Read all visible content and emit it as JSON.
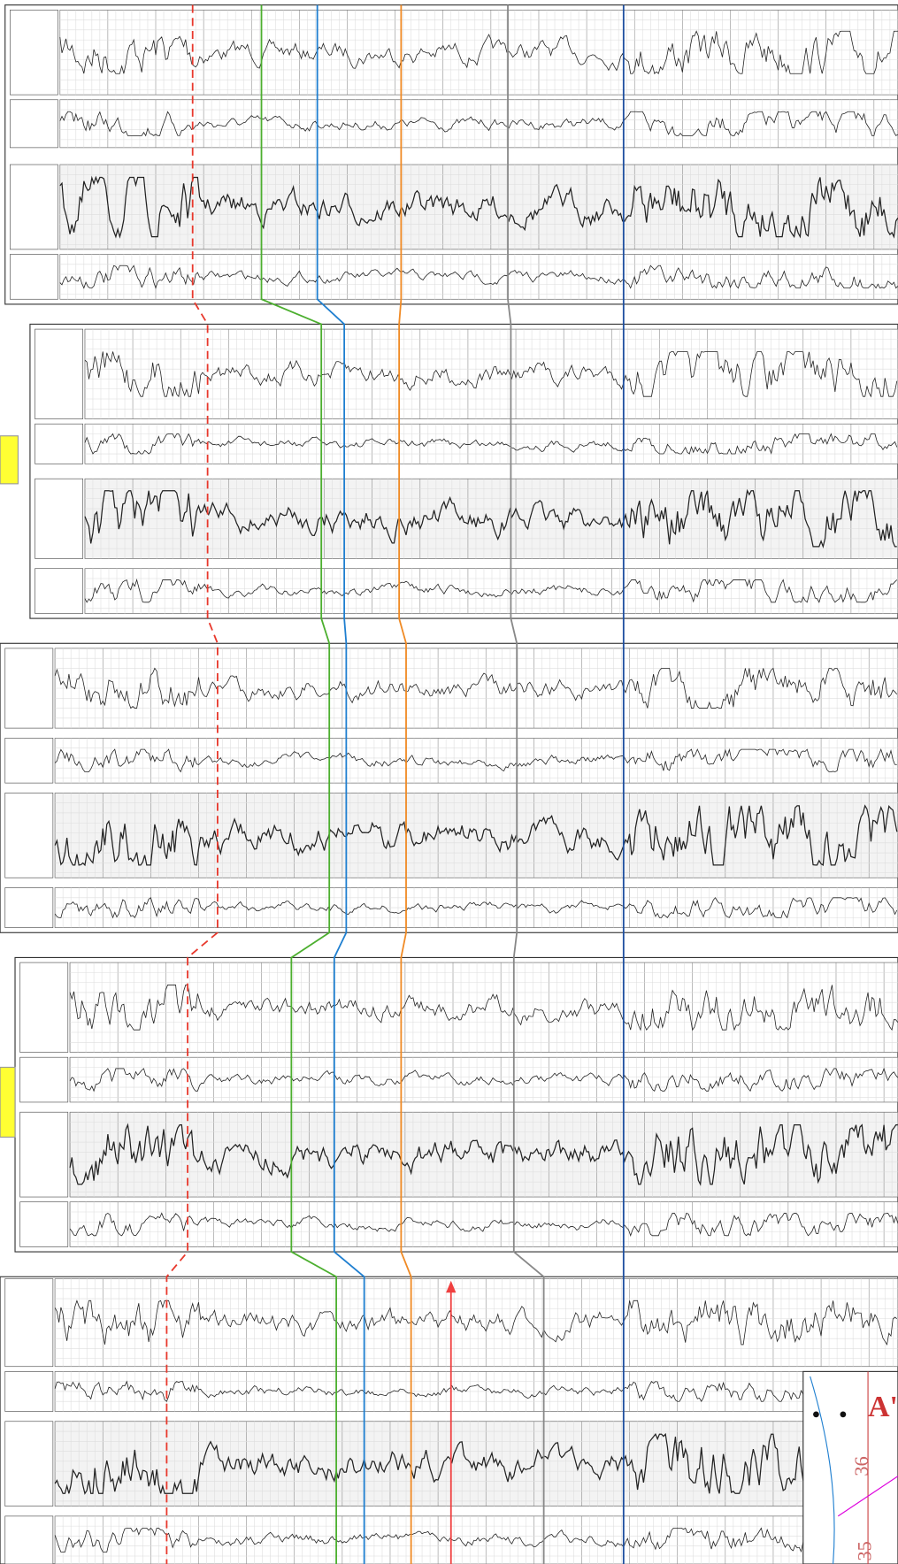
{
  "map_inset": {
    "labels": [
      "A'",
      "36",
      "35"
    ]
  }
}
